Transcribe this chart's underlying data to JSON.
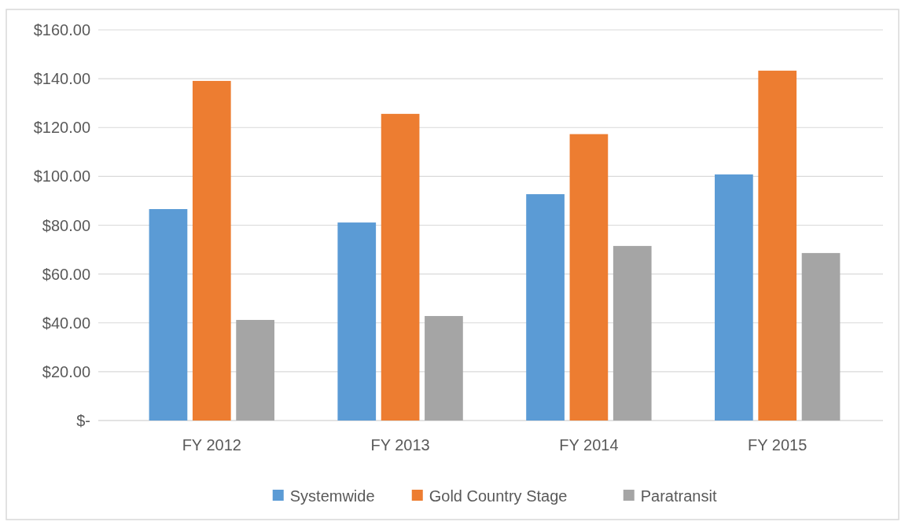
{
  "chart_data": {
    "type": "bar",
    "categories": [
      "FY 2012",
      "FY 2013",
      "FY 2014",
      "FY 2015"
    ],
    "series": [
      {
        "name": "Systemwide",
        "color": "#5b9bd5",
        "values": [
          86.6,
          81.1,
          92.7,
          100.8
        ]
      },
      {
        "name": "Gold Country Stage",
        "color": "#ed7d31",
        "values": [
          139.1,
          125.6,
          117.3,
          143.3
        ]
      },
      {
        "name": "Paratransit",
        "color": "#a5a5a5",
        "values": [
          41.2,
          42.8,
          71.5,
          68.6
        ]
      }
    ],
    "ylim": [
      0,
      160
    ],
    "yticks": [
      {
        "value": 0,
        "label": "$-"
      },
      {
        "value": 20,
        "label": "$20.00"
      },
      {
        "value": 40,
        "label": "$40.00"
      },
      {
        "value": 60,
        "label": "$60.00"
      },
      {
        "value": 80,
        "label": "$80.00"
      },
      {
        "value": 100,
        "label": "$100.00"
      },
      {
        "value": 120,
        "label": "$120.00"
      },
      {
        "value": 140,
        "label": "$140.00"
      },
      {
        "value": 160,
        "label": "$160.00"
      }
    ],
    "grid": "y",
    "legend": "bottom"
  }
}
